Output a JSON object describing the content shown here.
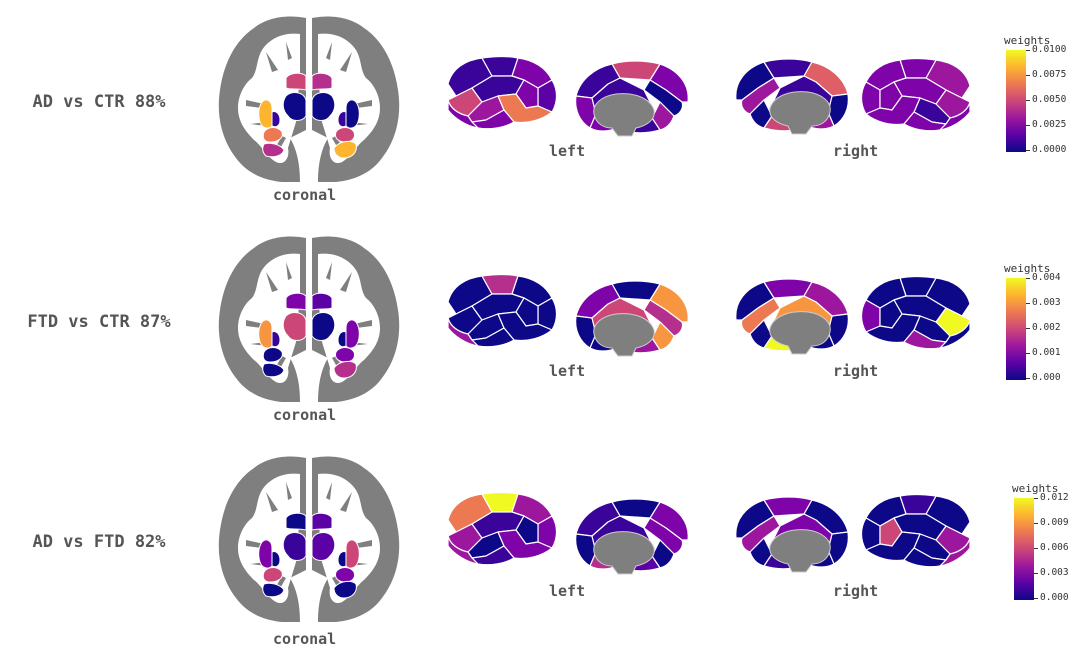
{
  "colors": {
    "c0": "#0d0887",
    "c1": "#3a049a",
    "c2": "#5c01a6",
    "c3": "#7e03a8",
    "c4": "#9c179e",
    "c5": "#b52f8c",
    "c6": "#cc4778",
    "c7": "#de5f65",
    "c8": "#ed7953",
    "c9": "#f89540",
    "c10": "#fdb42f",
    "c11": "#f0f921",
    "gray": "#7f7f7f"
  },
  "rows": [
    {
      "title": "AD vs CTR 88%",
      "coronal_label": "coronal",
      "left_label": "left",
      "right_label": "right",
      "colorbar": {
        "title": "weights",
        "ticks": [
          "0.0100",
          "0.0075",
          "0.0050",
          "0.0025",
          "0.0000"
        ]
      },
      "subcortical": {
        "caudateL": "c6",
        "caudateR": "c5",
        "thalL": "c0",
        "thalR": "c0",
        "putL": "c10",
        "putR": "c0",
        "pallL": "c1",
        "pallR": "c1",
        "amygL": "c8",
        "amygR": "c6",
        "hippL": "c5",
        "hippR": "c10"
      },
      "lateral_left": [
        "c1",
        "c1",
        "c3",
        "c2",
        "c6",
        "c1",
        "c3",
        "c4",
        "c8",
        "c3",
        "c3"
      ],
      "medial_left": [
        "c3",
        "c6",
        "c1",
        "c3",
        "c0",
        "c4",
        "c1",
        "c3",
        "c1"
      ],
      "medial_right": [
        "c0",
        "c1",
        "c7",
        "c0",
        "c4",
        "c0",
        "c6",
        "c4",
        "c1"
      ],
      "lateral_right": [
        "c4",
        "c3",
        "c3",
        "c3",
        "c4",
        "c3",
        "c3",
        "c1",
        "c3",
        "c3",
        "c3"
      ]
    },
    {
      "title": "FTD vs CTR 87%",
      "coronal_label": "coronal",
      "left_label": "left",
      "right_label": "right",
      "colorbar": {
        "title": "weights",
        "ticks": [
          "0.004",
          "0.003",
          "0.002",
          "0.001",
          "0.000"
        ]
      },
      "subcortical": {
        "caudateL": "c3",
        "caudateR": "c2",
        "thalL": "c6",
        "thalR": "c0",
        "putL": "c9",
        "putR": "c3",
        "pallL": "c1",
        "pallR": "c0",
        "amygL": "c0",
        "amygR": "c3",
        "hippL": "c0",
        "hippR": "c5"
      },
      "lateral_left": [
        "c0",
        "c5",
        "c0",
        "c0",
        "c0",
        "c0",
        "c0",
        "c0",
        "c0",
        "c0",
        "c4"
      ],
      "medial_left": [
        "c9",
        "c0",
        "c3",
        "c0",
        "c5",
        "c9",
        "c4",
        "c0",
        "c6"
      ],
      "medial_right": [
        "c0",
        "c3",
        "c4",
        "c0",
        "c8",
        "c0",
        "c11",
        "c0",
        "c9"
      ],
      "lateral_right": [
        "c0",
        "c0",
        "c0",
        "c3",
        "c11",
        "c0",
        "c0",
        "c0",
        "c0",
        "c4",
        "c0"
      ]
    },
    {
      "title": "AD vs FTD 82%",
      "coronal_label": "coronal",
      "left_label": "left",
      "right_label": "right",
      "colorbar": {
        "title": "weights",
        "ticks": [
          "0.012",
          "0.009",
          "0.006",
          "0.003",
          "0.000"
        ]
      },
      "subcortical": {
        "caudateL": "c0",
        "caudateR": "c2",
        "thalL": "c1",
        "thalR": "c2",
        "putL": "c3",
        "putR": "c6",
        "pallL": "c0",
        "pallR": "c0",
        "amygL": "c6",
        "amygR": "c3",
        "hippL": "c0",
        "hippR": "c0"
      },
      "lateral_left": [
        "c8",
        "c11",
        "c4",
        "c3",
        "c4",
        "c1",
        "c0",
        "c0",
        "c3",
        "c1",
        "c4"
      ],
      "medial_left": [
        "c3",
        "c0",
        "c1",
        "c0",
        "c3",
        "c0",
        "c2",
        "c5",
        "c1"
      ],
      "medial_right": [
        "c0",
        "c3",
        "c0",
        "c0",
        "c4",
        "c0",
        "c1",
        "c0",
        "c3"
      ],
      "lateral_right": [
        "c0",
        "c1",
        "c0",
        "c0",
        "c4",
        "c0",
        "c6",
        "c0",
        "c0",
        "c0",
        "c4"
      ]
    }
  ]
}
